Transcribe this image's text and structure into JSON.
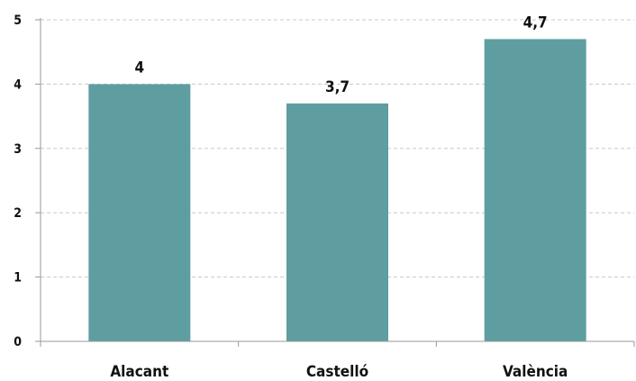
{
  "chart_data": {
    "type": "bar",
    "categories": [
      "Alacant",
      "Castelló",
      "València"
    ],
    "values": [
      4,
      3.7,
      4.7
    ],
    "value_labels": [
      "4",
      "3,7",
      "4,7"
    ],
    "ylim": [
      0,
      5
    ],
    "yticks": [
      0,
      1,
      2,
      3,
      4,
      5
    ],
    "ytick_labels": [
      "0",
      "1",
      "2",
      "3",
      "4",
      "5"
    ],
    "title": "",
    "xlabel": "",
    "ylabel": "",
    "grid": true,
    "bar_color": "#5f9ea0"
  }
}
